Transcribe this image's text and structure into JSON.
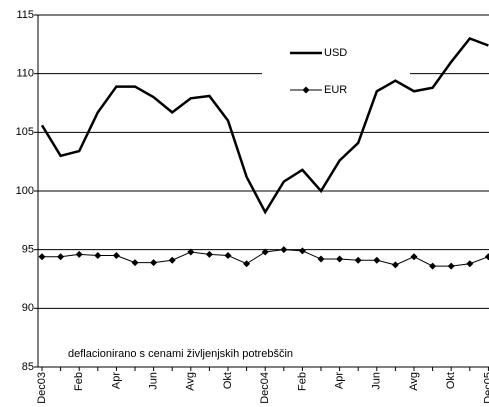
{
  "chart_data": {
    "type": "line",
    "categories": [
      "Dec03",
      null,
      "Feb",
      null,
      "Apr",
      null,
      "Jun",
      null,
      "Avg",
      null,
      "Okt",
      null,
      "Dec04",
      null,
      "Feb",
      null,
      "Apr",
      null,
      "Jun",
      null,
      "Avg",
      null,
      "Okt",
      null,
      "Dec05"
    ],
    "series": [
      {
        "name": "USD",
        "color": "#000000",
        "marker": "none",
        "values": [
          105.6,
          103.0,
          103.4,
          106.7,
          108.9,
          108.9,
          108.0,
          106.7,
          107.9,
          108.1,
          106.0,
          101.2,
          98.2,
          100.8,
          101.8,
          100.0,
          102.6,
          104.1,
          108.5,
          109.4,
          108.5,
          108.8,
          111.0,
          113.0,
          112.4
        ]
      },
      {
        "name": "EUR",
        "color": "#000000",
        "marker": "diamond",
        "values": [
          94.4,
          94.4,
          94.6,
          94.5,
          94.5,
          93.9,
          93.9,
          94.1,
          94.8,
          94.6,
          94.5,
          93.8,
          94.8,
          95.0,
          94.9,
          94.2,
          94.2,
          94.1,
          94.1,
          93.7,
          94.4,
          93.6,
          93.6,
          93.8,
          94.4
        ]
      }
    ],
    "annotation": "deflacionirano s cenami življenjskih potrebščin",
    "ylim": [
      85,
      115
    ],
    "yticks": [
      85,
      90,
      95,
      100,
      105,
      110,
      115
    ],
    "grid": true,
    "legend": "upper right"
  }
}
